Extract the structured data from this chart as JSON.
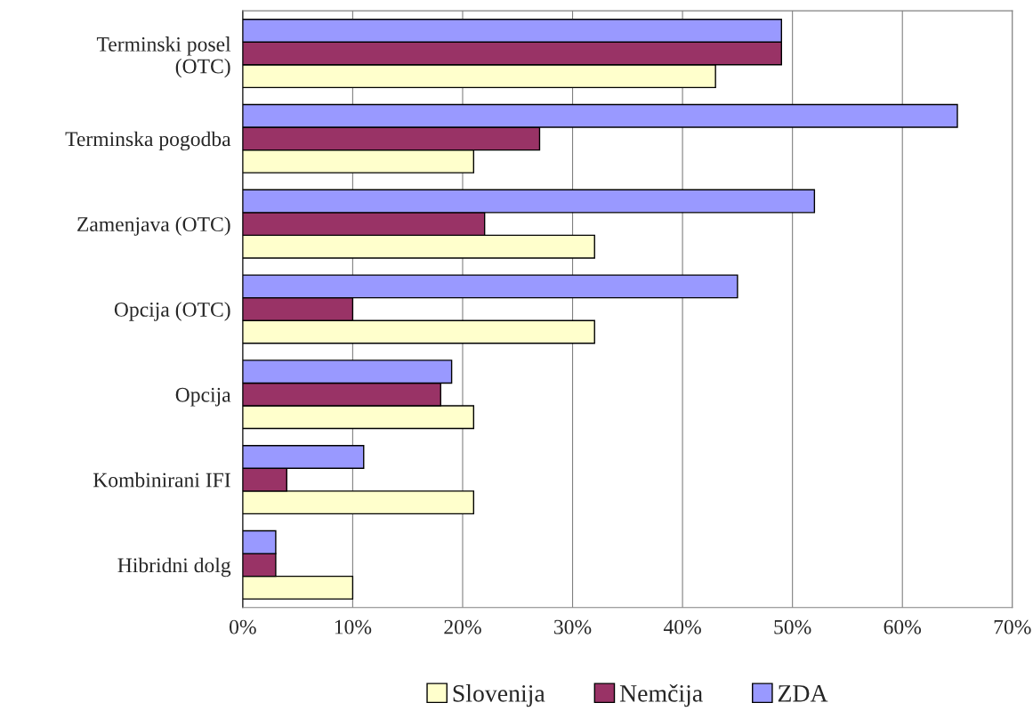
{
  "chart_data": {
    "type": "bar",
    "orientation": "horizontal",
    "categories": [
      "Terminski posel\n(OTC)",
      "Terminska pogodba",
      "Zamenjava (OTC)",
      "Opcija (OTC)",
      "Opcija",
      "Kombinirani IFI",
      "Hibridni dolg"
    ],
    "series": [
      {
        "name": "Slovenija",
        "color": "#ffffcc",
        "values": [
          43,
          21,
          32,
          32,
          21,
          21,
          10
        ]
      },
      {
        "name": "Nemčija",
        "color": "#993366",
        "values": [
          49,
          27,
          22,
          10,
          18,
          4,
          3
        ]
      },
      {
        "name": "ZDA",
        "color": "#9999ff",
        "values": [
          49,
          65,
          52,
          45,
          19,
          11,
          3
        ]
      }
    ],
    "xlim": [
      0,
      70
    ],
    "xticks": [
      {
        "value": 0,
        "label": "0%"
      },
      {
        "value": 10,
        "label": "10%"
      },
      {
        "value": 20,
        "label": "20%"
      },
      {
        "value": 30,
        "label": "30%"
      },
      {
        "value": 40,
        "label": "40%"
      },
      {
        "value": 50,
        "label": "50%"
      },
      {
        "value": 60,
        "label": "60%"
      },
      {
        "value": 70,
        "label": "70%"
      }
    ],
    "grid": "x",
    "legend": "bottom"
  }
}
